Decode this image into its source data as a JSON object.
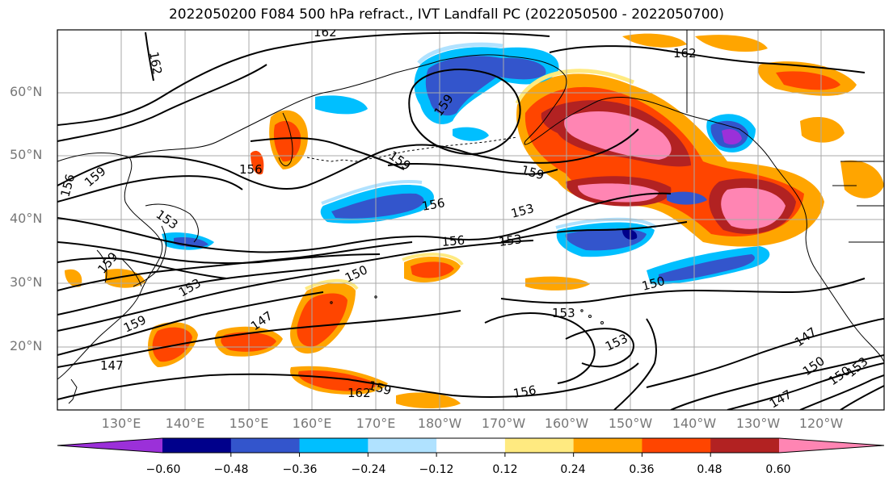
{
  "title": "2022050200 F084 500 hPa refract., IVT Landfall PC (2022050500 - 2022050700)",
  "lat_labels": [
    "60°N",
    "50°N",
    "40°N",
    "30°N",
    "20°N"
  ],
  "lon_labels": [
    "130°E",
    "140°E",
    "150°E",
    "160°E",
    "170°E",
    "180°W",
    "170°W",
    "160°W",
    "150°W",
    "140°W",
    "130°W",
    "120°W"
  ],
  "contour_labels": [
    "162",
    "162",
    "162",
    "156",
    "159",
    "159",
    "156",
    "153",
    "159",
    "156",
    "153",
    "156",
    "153",
    "159",
    "159",
    "159",
    "150",
    "150",
    "153",
    "153",
    "147",
    "147",
    "147",
    "150",
    "150",
    "147",
    "162",
    "159",
    "156",
    "153",
    "153"
  ],
  "colorbar": {
    "ticks": [
      "−0.60",
      "−0.48",
      "−0.36",
      "−0.24",
      "−0.12",
      "0.12",
      "0.24",
      "0.36",
      "0.48",
      "0.60"
    ],
    "colors": [
      "#9b30d9",
      "#00008b",
      "#3355cc",
      "#00bfff",
      "#b0e2ff",
      "#ffffff",
      "#ffea80",
      "#ffa500",
      "#ff4500",
      "#b22222",
      "#ff85b3"
    ]
  },
  "fill_colors": {
    "yellow": "#ffea80",
    "orange": "#ffa500",
    "redorange": "#ff4500",
    "darkred": "#b22222",
    "pink": "#ff85b3",
    "lightblue": "#b0e2ff",
    "cyan": "#00bfff",
    "blue": "#3355cc",
    "navy": "#00008b",
    "purple": "#9b30d9"
  }
}
